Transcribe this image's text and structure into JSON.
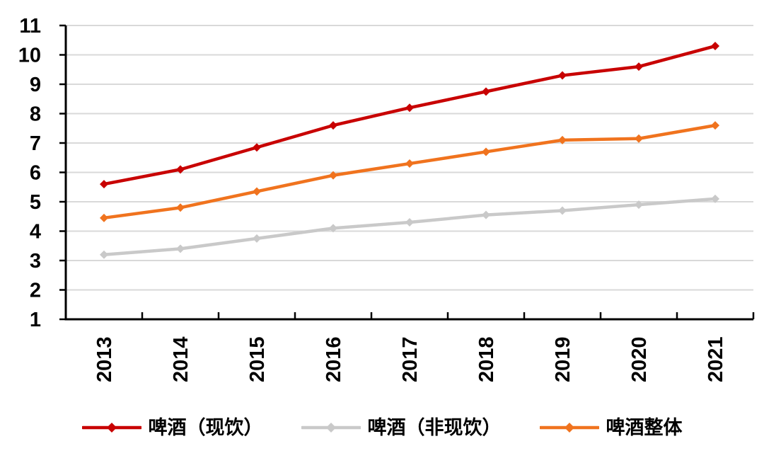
{
  "chart_data": {
    "type": "line",
    "title": "",
    "xlabel": "",
    "ylabel": "",
    "categories": [
      "2013",
      "2014",
      "2015",
      "2016",
      "2017",
      "2018",
      "2019",
      "2020",
      "2021"
    ],
    "series": [
      {
        "name": "啤酒（现饮）",
        "color": "#c80101",
        "values": [
          5.6,
          6.1,
          6.85,
          7.6,
          8.2,
          8.75,
          9.3,
          9.6,
          10.3
        ]
      },
      {
        "name": "啤酒（非现饮）",
        "color": "#c9c9c9",
        "values": [
          3.2,
          3.4,
          3.75,
          4.1,
          4.3,
          4.55,
          4.7,
          4.9,
          5.1
        ]
      },
      {
        "name": "啤酒整体",
        "color": "#f0731e",
        "values": [
          4.45,
          4.8,
          5.35,
          5.9,
          6.3,
          6.7,
          7.1,
          7.15,
          7.6
        ]
      }
    ],
    "ylim": [
      1,
      11
    ],
    "y_ticks": [
      1,
      2,
      3,
      4,
      5,
      6,
      7,
      8,
      9,
      10,
      11
    ],
    "marker": "diamond",
    "grid": "horizontal",
    "legend_position": "bottom",
    "colors": {
      "axis": "#000000",
      "gridline": "#d9d9d9",
      "background": "#ffffff",
      "tick_label": "#000000"
    }
  }
}
